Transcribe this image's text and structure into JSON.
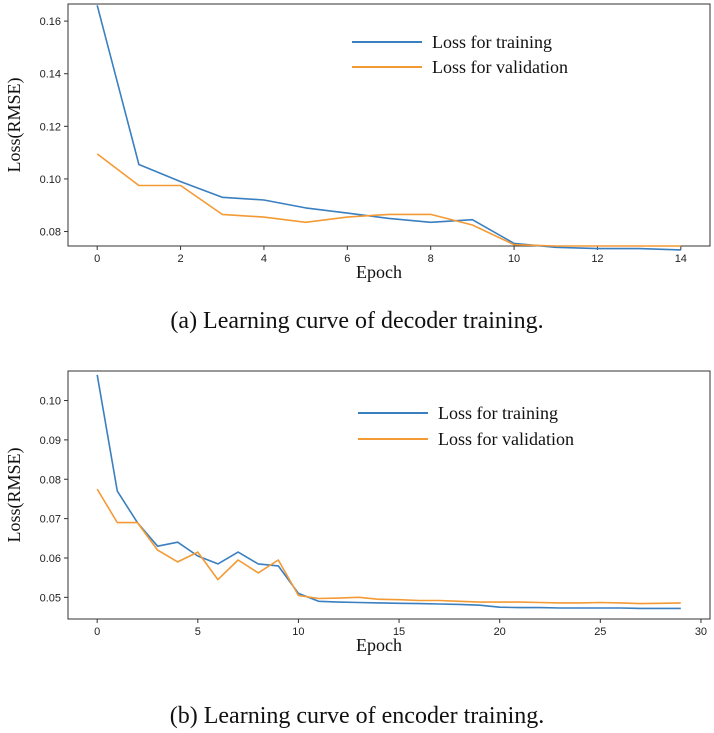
{
  "colors": {
    "training": "#3a7fc0",
    "validation": "#f39a35"
  },
  "captions": {
    "a": "(a) Learning curve of decoder training.",
    "b": "(b) Learning curve of encoder training."
  },
  "chart_data": [
    {
      "type": "line",
      "xlabel": "Epoch",
      "ylabel": "Loss(RMSE)",
      "xlim": [
        -0.7,
        14.7
      ],
      "ylim": [
        0.0745,
        0.1665
      ],
      "xticks": [
        0,
        2,
        4,
        6,
        8,
        10,
        12,
        14
      ],
      "yticks": [
        0.08,
        0.1,
        0.12,
        0.14,
        0.16
      ],
      "ytick_labels": [
        "0.08",
        "0.10",
        "0.12",
        "0.14",
        "0.16"
      ],
      "legend_position": "top-right",
      "series": [
        {
          "name": "Loss for training",
          "x": [
            0,
            1,
            2,
            3,
            4,
            5,
            6,
            7,
            8,
            9,
            10,
            11,
            12,
            13,
            14
          ],
          "values": [
            0.166,
            0.1055,
            0.099,
            0.093,
            0.092,
            0.089,
            0.087,
            0.085,
            0.0835,
            0.0845,
            0.0755,
            0.074,
            0.0735,
            0.0735,
            0.073
          ]
        },
        {
          "name": "Loss for validation",
          "x": [
            0,
            1,
            2,
            3,
            4,
            5,
            6,
            7,
            8,
            9,
            10,
            11,
            12,
            13,
            14
          ],
          "values": [
            0.1095,
            0.0975,
            0.0975,
            0.0865,
            0.0855,
            0.0835,
            0.0855,
            0.0865,
            0.0865,
            0.0825,
            0.075,
            0.0745,
            0.0745,
            0.0745,
            0.0745
          ]
        }
      ]
    },
    {
      "type": "line",
      "xlabel": "Epoch",
      "ylabel": "Loss(RMSE)",
      "xlim": [
        -1.45,
        30.45
      ],
      "ylim": [
        0.0445,
        0.1075
      ],
      "xticks": [
        0,
        5,
        10,
        15,
        20,
        25,
        30
      ],
      "yticks": [
        0.05,
        0.06,
        0.07,
        0.08,
        0.09,
        0.1
      ],
      "ytick_labels": [
        "0.05",
        "0.06",
        "0.07",
        "0.08",
        "0.09",
        "0.10"
      ],
      "legend_position": "top-right",
      "series": [
        {
          "name": "Loss for training",
          "x": [
            0,
            1,
            2,
            3,
            4,
            5,
            6,
            7,
            8,
            9,
            10,
            11,
            12,
            13,
            14,
            15,
            16,
            17,
            18,
            19,
            20,
            21,
            22,
            23,
            24,
            25,
            26,
            27,
            28,
            29
          ],
          "values": [
            0.1065,
            0.077,
            0.069,
            0.063,
            0.064,
            0.0605,
            0.0585,
            0.0615,
            0.0585,
            0.058,
            0.051,
            0.049,
            0.0488,
            0.0487,
            0.0486,
            0.0485,
            0.0484,
            0.0483,
            0.0482,
            0.048,
            0.0475,
            0.0474,
            0.0474,
            0.0473,
            0.0473,
            0.0473,
            0.0473,
            0.0472,
            0.0472,
            0.0472
          ]
        },
        {
          "name": "Loss for validation",
          "x": [
            0,
            1,
            2,
            3,
            4,
            5,
            6,
            7,
            8,
            9,
            10,
            11,
            12,
            13,
            14,
            15,
            16,
            17,
            18,
            19,
            20,
            21,
            22,
            23,
            24,
            25,
            26,
            27,
            28,
            29
          ],
          "values": [
            0.0775,
            0.069,
            0.069,
            0.062,
            0.059,
            0.0615,
            0.0545,
            0.0595,
            0.0562,
            0.0595,
            0.0505,
            0.0497,
            0.0498,
            0.05,
            0.0495,
            0.0494,
            0.0492,
            0.0492,
            0.049,
            0.0488,
            0.0488,
            0.0488,
            0.0487,
            0.0486,
            0.0486,
            0.0487,
            0.0486,
            0.0484,
            0.0485,
            0.0486
          ]
        }
      ]
    }
  ]
}
